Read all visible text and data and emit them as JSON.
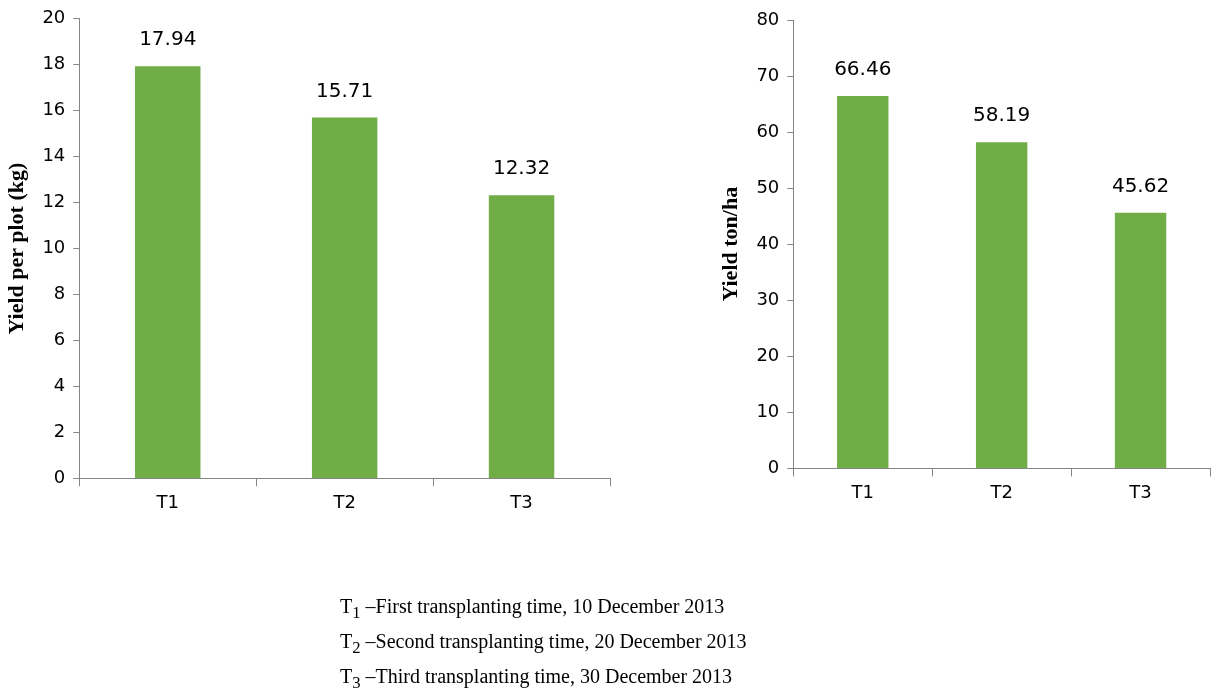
{
  "chart_data": [
    {
      "type": "bar",
      "ylabel": "Yield per plot (kg)",
      "categories": [
        "T1",
        "T2",
        "T3"
      ],
      "values": [
        17.94,
        15.71,
        12.32
      ],
      "color": "#70ad47",
      "ylim": [
        0,
        20
      ],
      "yticks": [
        0,
        2,
        4,
        6,
        8,
        10,
        12,
        14,
        16,
        18,
        20
      ],
      "grid": false,
      "legend": false,
      "data_labels": true,
      "annotations": [
        "T$_{1}$ –First transplanting time, 10 December 2013",
        "T$_{2}$ –Second transplanting time, 20 December 2013",
        "T$_{3}$ –Third transplanting time, 30 December 2013"
      ]
    },
    {
      "type": "bar",
      "ylabel": "Yield ton/ha",
      "categories": [
        "T1",
        "T2",
        "T3"
      ],
      "values": [
        66.46,
        58.19,
        45.62
      ],
      "color": "#70ad47",
      "ylim": [
        0,
        80
      ],
      "yticks": [
        0,
        10,
        20,
        30,
        40,
        50,
        60,
        70,
        80
      ],
      "grid": false,
      "legend": false,
      "data_labels": true
    }
  ]
}
